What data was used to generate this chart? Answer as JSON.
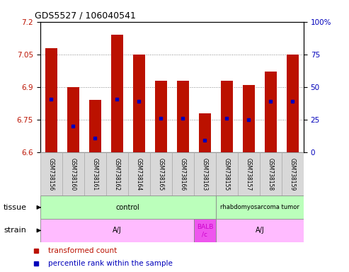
{
  "title": "GDS5527 / 106040541",
  "samples": [
    "GSM738156",
    "GSM738160",
    "GSM738161",
    "GSM738162",
    "GSM738164",
    "GSM738165",
    "GSM738166",
    "GSM738163",
    "GSM738155",
    "GSM738157",
    "GSM738158",
    "GSM738159"
  ],
  "bar_tops": [
    7.08,
    6.9,
    6.84,
    7.14,
    7.05,
    6.93,
    6.93,
    6.78,
    6.93,
    6.91,
    6.97,
    7.05
  ],
  "bar_bottoms": [
    6.6,
    6.6,
    6.6,
    6.6,
    6.6,
    6.6,
    6.6,
    6.6,
    6.6,
    6.6,
    6.6,
    6.6
  ],
  "percentile_values": [
    6.845,
    6.72,
    6.665,
    6.845,
    6.835,
    6.755,
    6.755,
    6.655,
    6.755,
    6.75,
    6.835,
    6.835
  ],
  "ylim": [
    6.6,
    7.2
  ],
  "yticks": [
    6.6,
    6.75,
    6.9,
    7.05,
    7.2
  ],
  "ytick_labels": [
    "6.6",
    "6.75",
    "6.9",
    "7.05",
    "7.2"
  ],
  "right_yticks_pct": [
    0,
    25,
    50,
    75,
    100
  ],
  "right_ytick_labels": [
    "0",
    "25",
    "50",
    "75",
    "100%"
  ],
  "bar_color": "#bb1100",
  "percentile_color": "#0000bb",
  "grid_color": "#888888",
  "tissue_groups": [
    {
      "label": "control",
      "start": 0,
      "end": 8,
      "color": "#bbffbb"
    },
    {
      "label": "rhabdomyosarcoma tumor",
      "start": 8,
      "end": 12,
      "color": "#bbffbb"
    }
  ],
  "strain_groups": [
    {
      "label": "A/J",
      "start": 0,
      "end": 7,
      "color": "#ffbbff"
    },
    {
      "label": "BALB\n/c",
      "start": 7,
      "end": 8,
      "color": "#ee55ee"
    },
    {
      "label": "A/J",
      "start": 8,
      "end": 12,
      "color": "#ffbbff"
    }
  ],
  "tissue_label": "tissue",
  "strain_label": "strain",
  "legend_items": [
    {
      "label": "transformed count",
      "color": "#bb1100"
    },
    {
      "label": "percentile rank within the sample",
      "color": "#0000bb"
    }
  ],
  "bg_color": "#ffffff",
  "tick_label_color_left": "#bb1100",
  "tick_label_color_right": "#0000bb",
  "sample_box_color": "#d8d8d8",
  "sample_box_border": "#aaaaaa"
}
